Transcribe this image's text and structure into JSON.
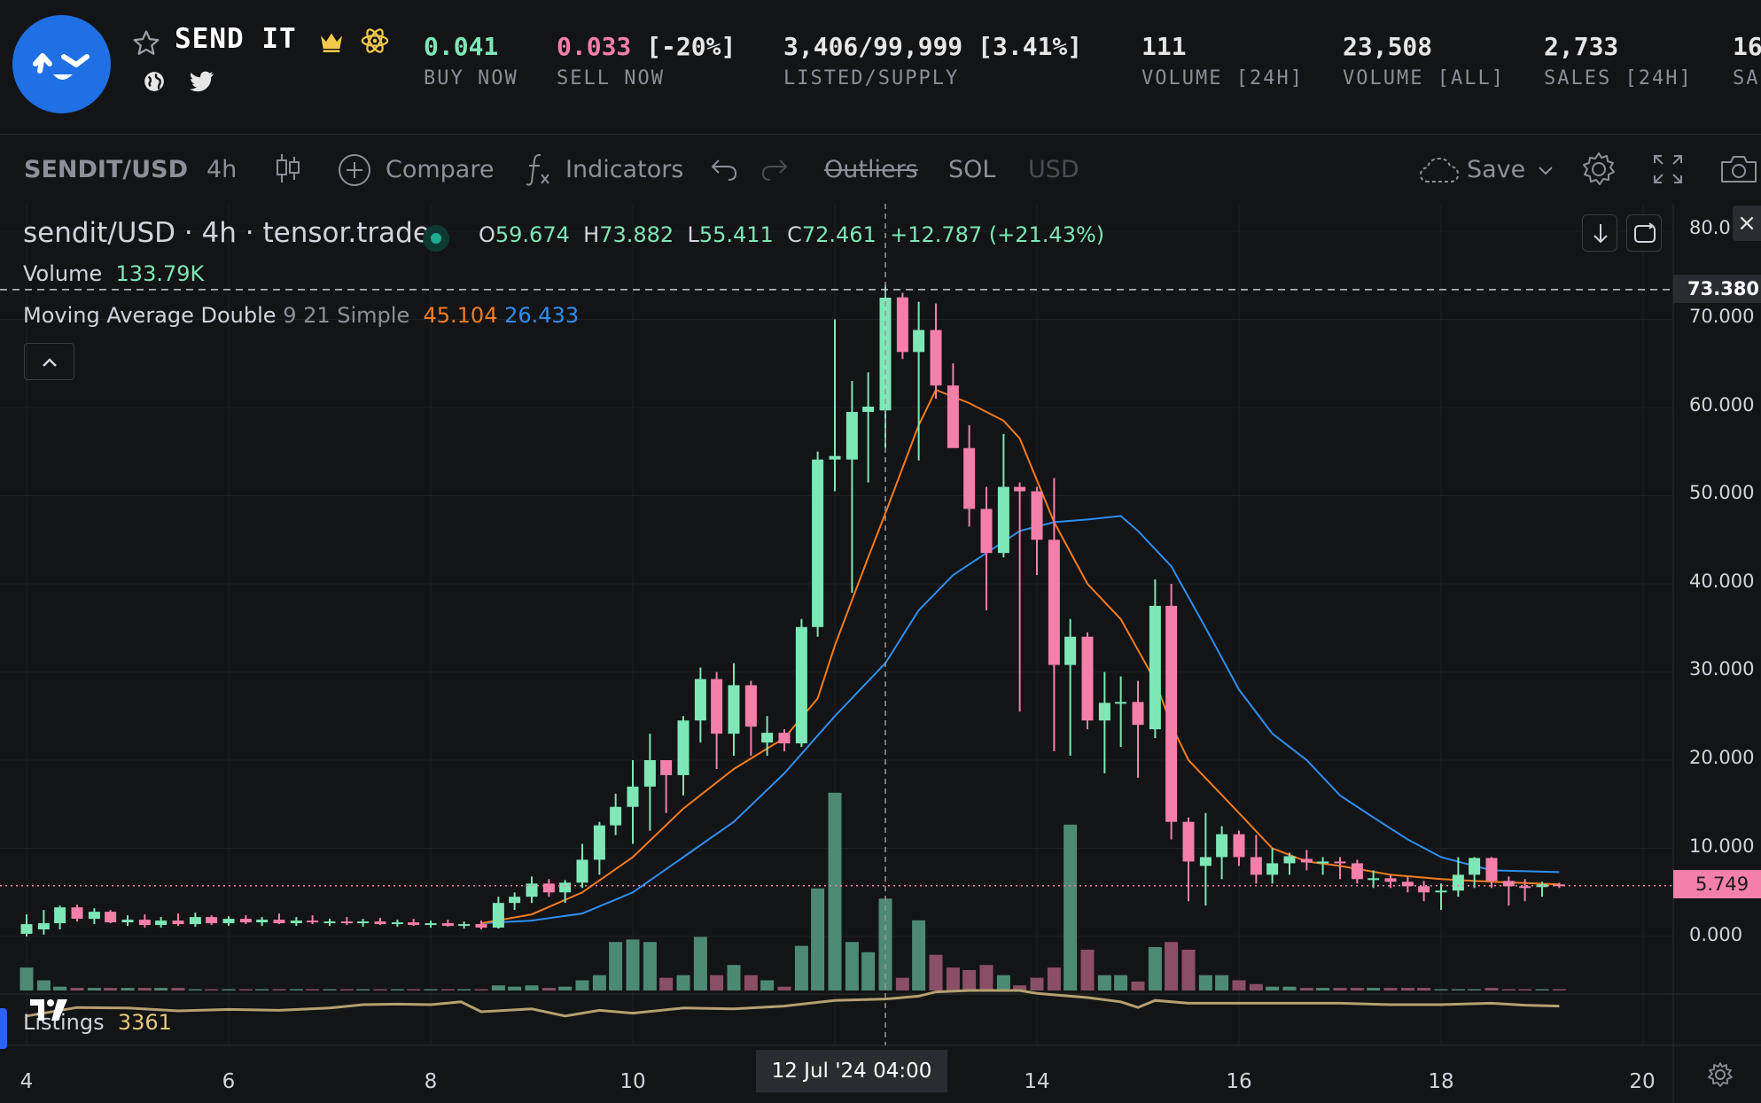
{
  "header": {
    "collection_name": "SEND IT",
    "stats": [
      {
        "value": "0.041",
        "label": "BUY NOW"
      },
      {
        "value": "0.033",
        "value_suffix": "[-20%]",
        "label": "SELL NOW"
      },
      {
        "value": "3,406/99,999 [3.41%]",
        "label": "LISTED/SUPPLY"
      },
      {
        "value": "111",
        "label": "VOLUME [24H]"
      },
      {
        "value": "23,508",
        "label": "VOLUME [ALL]"
      },
      {
        "value": "2,733",
        "label": "SALES [24H]"
      },
      {
        "value": "16",
        "label": "SA"
      }
    ]
  },
  "toolbar": {
    "symbol": "SENDIT/USD",
    "interval": "4h",
    "compare": "Compare",
    "indicators": "Indicators",
    "outliers": "Outliers",
    "currency_sol": "SOL",
    "currency_usd": "USD",
    "save": "Save"
  },
  "legend": {
    "symbol": "sendit/USD · 4h · tensor.trade",
    "o_label": "O",
    "o": "59.674",
    "h_label": "H",
    "h": "73.882",
    "l_label": "L",
    "l": "55.411",
    "c_label": "C",
    "c": "72.461",
    "change": "+12.787 (+21.43%)",
    "volume_label": "Volume",
    "volume_value": "133.79K",
    "ma_label": "Moving Average Double",
    "ma_params": "9 21 Simple",
    "ma_fast": "45.104",
    "ma_slow": "26.433",
    "listings_label": "Listings",
    "listings_value": "3361"
  },
  "price_axis": {
    "labels": [
      "80.0",
      "70.000",
      "60.000",
      "50.000",
      "40.000",
      "30.000",
      "20.000",
      "10.000",
      "0.000"
    ],
    "crosshair_price": "73.380",
    "last_price": "5.749"
  },
  "time_axis": {
    "labels": [
      "4",
      "6",
      "8",
      "10",
      "14",
      "16",
      "18",
      "20"
    ],
    "crosshair_time": "12 Jul '24   04:00"
  },
  "colors": {
    "up": "#7ee7b6",
    "down": "#f47fa8",
    "ma_fast": "#f57c1f",
    "ma_slow": "#2e8ff0",
    "listings": "#b5a070",
    "background": "#131416"
  },
  "chart_data": {
    "type": "candlestick",
    "interval": "4h",
    "ylim": [
      0,
      80
    ],
    "x_range_days": [
      4,
      20
    ],
    "candles": [
      {
        "t": 4.0,
        "o": 0.3,
        "h": 2.5,
        "l": 0.0,
        "c": 1.4
      },
      {
        "t": 4.17,
        "o": 0.8,
        "h": 3.0,
        "l": 0.2,
        "c": 1.5
      },
      {
        "t": 4.33,
        "o": 1.5,
        "h": 3.5,
        "l": 0.8,
        "c": 3.3
      },
      {
        "t": 4.5,
        "o": 3.3,
        "h": 3.6,
        "l": 1.7,
        "c": 2.0
      },
      {
        "t": 4.67,
        "o": 2.0,
        "h": 3.2,
        "l": 1.4,
        "c": 2.8
      },
      {
        "t": 4.83,
        "o": 2.8,
        "h": 3.0,
        "l": 1.5,
        "c": 1.6
      },
      {
        "t": 5.0,
        "o": 1.6,
        "h": 2.4,
        "l": 1.2,
        "c": 1.9
      },
      {
        "t": 5.17,
        "o": 1.9,
        "h": 2.5,
        "l": 1.0,
        "c": 1.3
      },
      {
        "t": 5.33,
        "o": 1.3,
        "h": 2.2,
        "l": 1.0,
        "c": 1.8
      },
      {
        "t": 5.5,
        "o": 1.8,
        "h": 2.6,
        "l": 1.2,
        "c": 1.4
      },
      {
        "t": 5.67,
        "o": 1.4,
        "h": 2.7,
        "l": 1.1,
        "c": 2.2
      },
      {
        "t": 5.83,
        "o": 2.2,
        "h": 2.4,
        "l": 1.3,
        "c": 1.5
      },
      {
        "t": 6.0,
        "o": 1.5,
        "h": 2.3,
        "l": 1.2,
        "c": 2.0
      },
      {
        "t": 6.17,
        "o": 2.0,
        "h": 2.4,
        "l": 1.4,
        "c": 1.6
      },
      {
        "t": 6.33,
        "o": 1.6,
        "h": 2.2,
        "l": 1.2,
        "c": 1.9
      },
      {
        "t": 6.5,
        "o": 1.9,
        "h": 2.6,
        "l": 1.4,
        "c": 1.5
      },
      {
        "t": 6.67,
        "o": 1.5,
        "h": 2.2,
        "l": 1.2,
        "c": 1.8
      },
      {
        "t": 6.83,
        "o": 1.8,
        "h": 2.4,
        "l": 1.4,
        "c": 1.6
      },
      {
        "t": 7.0,
        "o": 1.6,
        "h": 2.0,
        "l": 1.2,
        "c": 1.7
      },
      {
        "t": 7.17,
        "o": 1.7,
        "h": 2.2,
        "l": 1.3,
        "c": 1.5
      },
      {
        "t": 7.33,
        "o": 1.5,
        "h": 2.0,
        "l": 1.1,
        "c": 1.7
      },
      {
        "t": 7.5,
        "o": 1.7,
        "h": 2.1,
        "l": 1.3,
        "c": 1.4
      },
      {
        "t": 7.67,
        "o": 1.4,
        "h": 1.9,
        "l": 1.1,
        "c": 1.6
      },
      {
        "t": 7.83,
        "o": 1.6,
        "h": 2.0,
        "l": 1.2,
        "c": 1.3
      },
      {
        "t": 8.0,
        "o": 1.3,
        "h": 1.8,
        "l": 1.0,
        "c": 1.5
      },
      {
        "t": 8.17,
        "o": 1.5,
        "h": 1.9,
        "l": 1.1,
        "c": 1.2
      },
      {
        "t": 8.33,
        "o": 1.2,
        "h": 1.7,
        "l": 0.9,
        "c": 1.4
      },
      {
        "t": 8.5,
        "o": 1.4,
        "h": 1.8,
        "l": 0.8,
        "c": 1.0
      },
      {
        "t": 8.67,
        "o": 1.0,
        "h": 4.5,
        "l": 0.9,
        "c": 3.8
      },
      {
        "t": 8.83,
        "o": 3.8,
        "h": 5.0,
        "l": 3.0,
        "c": 4.5
      },
      {
        "t": 9.0,
        "o": 4.5,
        "h": 6.8,
        "l": 3.8,
        "c": 6.0
      },
      {
        "t": 9.17,
        "o": 6.0,
        "h": 6.5,
        "l": 4.5,
        "c": 5.0
      },
      {
        "t": 9.33,
        "o": 5.0,
        "h": 6.4,
        "l": 3.8,
        "c": 6.1
      },
      {
        "t": 9.5,
        "o": 6.1,
        "h": 10.5,
        "l": 5.5,
        "c": 8.7
      },
      {
        "t": 9.67,
        "o": 8.7,
        "h": 13.0,
        "l": 7.0,
        "c": 12.6
      },
      {
        "t": 9.83,
        "o": 12.6,
        "h": 16.2,
        "l": 11.5,
        "c": 14.7
      },
      {
        "t": 10.0,
        "o": 14.7,
        "h": 20.0,
        "l": 10.5,
        "c": 17.0
      },
      {
        "t": 10.17,
        "o": 17.0,
        "h": 23.0,
        "l": 12.0,
        "c": 20.0
      },
      {
        "t": 10.33,
        "o": 20.0,
        "h": 19.8,
        "l": 14.0,
        "c": 18.3
      },
      {
        "t": 10.5,
        "o": 18.3,
        "h": 25.0,
        "l": 16.0,
        "c": 24.5
      },
      {
        "t": 10.67,
        "o": 24.5,
        "h": 30.5,
        "l": 22.0,
        "c": 29.2
      },
      {
        "t": 10.83,
        "o": 29.2,
        "h": 30.0,
        "l": 19.0,
        "c": 23.0
      },
      {
        "t": 11.0,
        "o": 23.0,
        "h": 31.0,
        "l": 20.5,
        "c": 28.5
      },
      {
        "t": 11.17,
        "o": 28.5,
        "h": 29.0,
        "l": 20.5,
        "c": 23.8
      },
      {
        "t": 11.33,
        "o": 22.0,
        "h": 25.0,
        "l": 20.5,
        "c": 23.1
      },
      {
        "t": 11.5,
        "o": 23.1,
        "h": 23.5,
        "l": 21.0,
        "c": 21.9
      },
      {
        "t": 11.67,
        "o": 21.9,
        "h": 36.0,
        "l": 21.5,
        "c": 35.1
      },
      {
        "t": 11.83,
        "o": 35.1,
        "h": 55.0,
        "l": 34.0,
        "c": 54.1
      },
      {
        "t": 12.0,
        "o": 54.1,
        "h": 70.0,
        "l": 50.5,
        "c": 54.5
      },
      {
        "t": 12.17,
        "o": 54.1,
        "h": 63.0,
        "l": 39.0,
        "c": 59.5
      },
      {
        "t": 12.33,
        "o": 59.5,
        "h": 64.0,
        "l": 51.5,
        "c": 60.1
      },
      {
        "t": 12.5,
        "o": 59.674,
        "h": 73.882,
        "l": 55.411,
        "c": 72.461
      },
      {
        "t": 12.67,
        "o": 72.5,
        "h": 73.0,
        "l": 65.5,
        "c": 66.3
      },
      {
        "t": 12.83,
        "o": 66.3,
        "h": 72.0,
        "l": 54.0,
        "c": 68.8
      },
      {
        "t": 13.0,
        "o": 68.8,
        "h": 71.8,
        "l": 61.0,
        "c": 62.5
      },
      {
        "t": 13.17,
        "o": 62.5,
        "h": 65.0,
        "l": 55.5,
        "c": 55.4
      },
      {
        "t": 13.33,
        "o": 55.4,
        "h": 58.0,
        "l": 46.5,
        "c": 48.5
      },
      {
        "t": 13.5,
        "o": 48.5,
        "h": 51.0,
        "l": 37.0,
        "c": 43.5
      },
      {
        "t": 13.67,
        "o": 43.5,
        "h": 57.0,
        "l": 43.0,
        "c": 51.0
      },
      {
        "t": 13.83,
        "o": 51.0,
        "h": 51.5,
        "l": 25.5,
        "c": 50.5
      },
      {
        "t": 14.0,
        "o": 50.5,
        "h": 51.0,
        "l": 41.0,
        "c": 45.0
      },
      {
        "t": 14.17,
        "o": 45.0,
        "h": 52.0,
        "l": 21.0,
        "c": 30.8
      },
      {
        "t": 14.33,
        "o": 30.8,
        "h": 36.0,
        "l": 20.5,
        "c": 34.0
      },
      {
        "t": 14.5,
        "o": 34.0,
        "h": 34.5,
        "l": 23.5,
        "c": 24.5
      },
      {
        "t": 14.67,
        "o": 24.5,
        "h": 30.0,
        "l": 18.5,
        "c": 26.5
      },
      {
        "t": 14.83,
        "o": 26.5,
        "h": 29.5,
        "l": 21.5,
        "c": 26.6
      },
      {
        "t": 15.0,
        "o": 26.6,
        "h": 29.0,
        "l": 18.0,
        "c": 24.0
      },
      {
        "t": 15.17,
        "o": 23.5,
        "h": 40.5,
        "l": 22.5,
        "c": 37.5
      },
      {
        "t": 15.33,
        "o": 37.5,
        "h": 40.0,
        "l": 11.0,
        "c": 13.0
      },
      {
        "t": 15.5,
        "o": 13.0,
        "h": 13.5,
        "l": 4.0,
        "c": 8.5
      },
      {
        "t": 15.67,
        "o": 8.0,
        "h": 14.0,
        "l": 3.5,
        "c": 9.0
      },
      {
        "t": 15.83,
        "o": 9.0,
        "h": 12.5,
        "l": 6.5,
        "c": 11.6
      },
      {
        "t": 16.0,
        "o": 11.6,
        "h": 12.0,
        "l": 8.0,
        "c": 9.0
      },
      {
        "t": 16.17,
        "o": 9.0,
        "h": 11.5,
        "l": 6.0,
        "c": 7.0
      },
      {
        "t": 16.33,
        "o": 7.0,
        "h": 10.0,
        "l": 6.0,
        "c": 8.3
      },
      {
        "t": 16.5,
        "o": 8.3,
        "h": 9.5,
        "l": 7.0,
        "c": 9.1
      },
      {
        "t": 16.67,
        "o": 8.8,
        "h": 9.8,
        "l": 7.5,
        "c": 8.4
      },
      {
        "t": 16.83,
        "o": 8.4,
        "h": 9.0,
        "l": 7.0,
        "c": 8.5
      },
      {
        "t": 17.0,
        "o": 8.5,
        "h": 9.0,
        "l": 6.5,
        "c": 8.3
      },
      {
        "t": 17.17,
        "o": 8.3,
        "h": 8.7,
        "l": 6.0,
        "c": 6.5
      },
      {
        "t": 17.33,
        "o": 6.5,
        "h": 7.5,
        "l": 5.5,
        "c": 6.6
      },
      {
        "t": 17.5,
        "o": 6.6,
        "h": 7.0,
        "l": 5.5,
        "c": 6.2
      },
      {
        "t": 17.67,
        "o": 6.2,
        "h": 6.8,
        "l": 5.0,
        "c": 5.7
      },
      {
        "t": 17.83,
        "o": 5.7,
        "h": 6.3,
        "l": 4.0,
        "c": 5.0
      },
      {
        "t": 18.0,
        "o": 5.0,
        "h": 6.0,
        "l": 3.0,
        "c": 5.2
      },
      {
        "t": 18.17,
        "o": 5.2,
        "h": 9.0,
        "l": 4.5,
        "c": 7.0
      },
      {
        "t": 18.33,
        "o": 7.0,
        "h": 9.0,
        "l": 5.5,
        "c": 8.9
      },
      {
        "t": 18.5,
        "o": 8.9,
        "h": 9.0,
        "l": 5.5,
        "c": 6.3
      },
      {
        "t": 18.67,
        "o": 6.3,
        "h": 6.8,
        "l": 3.5,
        "c": 5.7
      },
      {
        "t": 18.83,
        "o": 5.7,
        "h": 6.5,
        "l": 4.0,
        "c": 5.6
      },
      {
        "t": 19.0,
        "o": 5.6,
        "h": 6.2,
        "l": 4.5,
        "c": 5.9
      },
      {
        "t": 19.17,
        "o": 5.9,
        "h": 6.1,
        "l": 5.5,
        "c": 5.749
      }
    ],
    "volume": [
      18,
      8,
      3,
      2,
      2,
      2,
      2,
      2,
      2,
      2,
      1,
      1,
      1,
      1,
      1,
      1,
      1,
      1,
      1,
      1,
      1,
      1,
      1,
      1,
      1,
      1,
      1,
      1,
      4,
      3,
      4,
      2,
      3,
      8,
      12,
      38,
      40,
      38,
      10,
      12,
      42,
      12,
      20,
      12,
      8,
      3,
      35,
      80,
      155,
      38,
      30,
      72,
      10,
      55,
      28,
      18,
      16,
      20,
      12,
      4,
      10,
      18,
      130,
      32,
      12,
      12,
      7,
      34,
      38,
      32,
      12,
      12,
      8,
      5,
      3,
      3,
      2,
      2,
      2,
      2,
      2,
      2,
      2,
      2,
      1,
      1,
      1,
      2,
      1,
      1,
      1,
      1
    ],
    "ma_fast_points": [
      [
        8.5,
        1.5
      ],
      [
        9.0,
        2.5
      ],
      [
        9.5,
        5.0
      ],
      [
        10.0,
        9.0
      ],
      [
        10.5,
        14.5
      ],
      [
        11.0,
        19.0
      ],
      [
        11.5,
        22.5
      ],
      [
        11.83,
        27.0
      ],
      [
        12.0,
        33.0
      ],
      [
        12.33,
        43.0
      ],
      [
        12.5,
        48.0
      ],
      [
        12.83,
        58.0
      ],
      [
        13.0,
        62.0
      ],
      [
        13.33,
        60.5
      ],
      [
        13.67,
        58.5
      ],
      [
        13.83,
        56.5
      ],
      [
        14.17,
        47.0
      ],
      [
        14.5,
        40.0
      ],
      [
        14.83,
        36.0
      ],
      [
        15.17,
        29.0
      ],
      [
        15.33,
        24.0
      ],
      [
        15.5,
        20.0
      ],
      [
        16.0,
        14.0
      ],
      [
        16.33,
        10.0
      ],
      [
        16.67,
        8.5
      ],
      [
        17.0,
        8.0
      ],
      [
        17.5,
        7.0
      ],
      [
        18.0,
        6.5
      ],
      [
        18.5,
        6.2
      ],
      [
        19.17,
        5.9
      ]
    ],
    "ma_slow_points": [
      [
        8.5,
        1.5
      ],
      [
        9.0,
        1.8
      ],
      [
        9.5,
        2.6
      ],
      [
        10.0,
        5.0
      ],
      [
        10.5,
        9.0
      ],
      [
        11.0,
        13.0
      ],
      [
        11.5,
        18.5
      ],
      [
        12.0,
        25.0
      ],
      [
        12.5,
        31.0
      ],
      [
        12.83,
        37.0
      ],
      [
        13.17,
        41.0
      ],
      [
        13.5,
        43.5
      ],
      [
        13.83,
        46.0
      ],
      [
        14.17,
        47.0
      ],
      [
        14.5,
        47.3
      ],
      [
        14.83,
        47.7
      ],
      [
        15.0,
        46.0
      ],
      [
        15.33,
        42.0
      ],
      [
        15.67,
        35.0
      ],
      [
        16.0,
        28.0
      ],
      [
        16.33,
        23.0
      ],
      [
        16.67,
        20.0
      ],
      [
        17.0,
        16.0
      ],
      [
        17.33,
        13.5
      ],
      [
        17.67,
        11.0
      ],
      [
        18.0,
        9.0
      ],
      [
        18.33,
        8.0
      ],
      [
        18.5,
        7.5
      ],
      [
        19.17,
        7.3
      ]
    ],
    "listings_points": [
      [
        4.0,
        0.1
      ],
      [
        4.5,
        0.4
      ],
      [
        5.0,
        0.38
      ],
      [
        5.5,
        0.28
      ],
      [
        6.0,
        0.33
      ],
      [
        6.5,
        0.3
      ],
      [
        7.0,
        0.38
      ],
      [
        7.33,
        0.5
      ],
      [
        7.67,
        0.52
      ],
      [
        8.0,
        0.5
      ],
      [
        8.3,
        0.6
      ],
      [
        8.5,
        0.25
      ],
      [
        9.0,
        0.35
      ],
      [
        9.33,
        0.1
      ],
      [
        9.67,
        0.3
      ],
      [
        10.0,
        0.2
      ],
      [
        10.5,
        0.38
      ],
      [
        11.0,
        0.35
      ],
      [
        11.5,
        0.45
      ],
      [
        12.0,
        0.65
      ],
      [
        12.5,
        0.7
      ],
      [
        12.83,
        0.8
      ],
      [
        13.0,
        0.95
      ],
      [
        13.33,
        1.0
      ],
      [
        13.83,
        1.0
      ],
      [
        14.0,
        0.9
      ],
      [
        14.5,
        0.75
      ],
      [
        14.83,
        0.6
      ],
      [
        15.0,
        0.4
      ],
      [
        15.17,
        0.65
      ],
      [
        15.5,
        0.55
      ],
      [
        16.0,
        0.55
      ],
      [
        16.5,
        0.55
      ],
      [
        17.0,
        0.55
      ],
      [
        17.5,
        0.5
      ],
      [
        18.0,
        0.5
      ],
      [
        18.5,
        0.55
      ],
      [
        18.83,
        0.48
      ],
      [
        19.17,
        0.45
      ]
    ]
  }
}
